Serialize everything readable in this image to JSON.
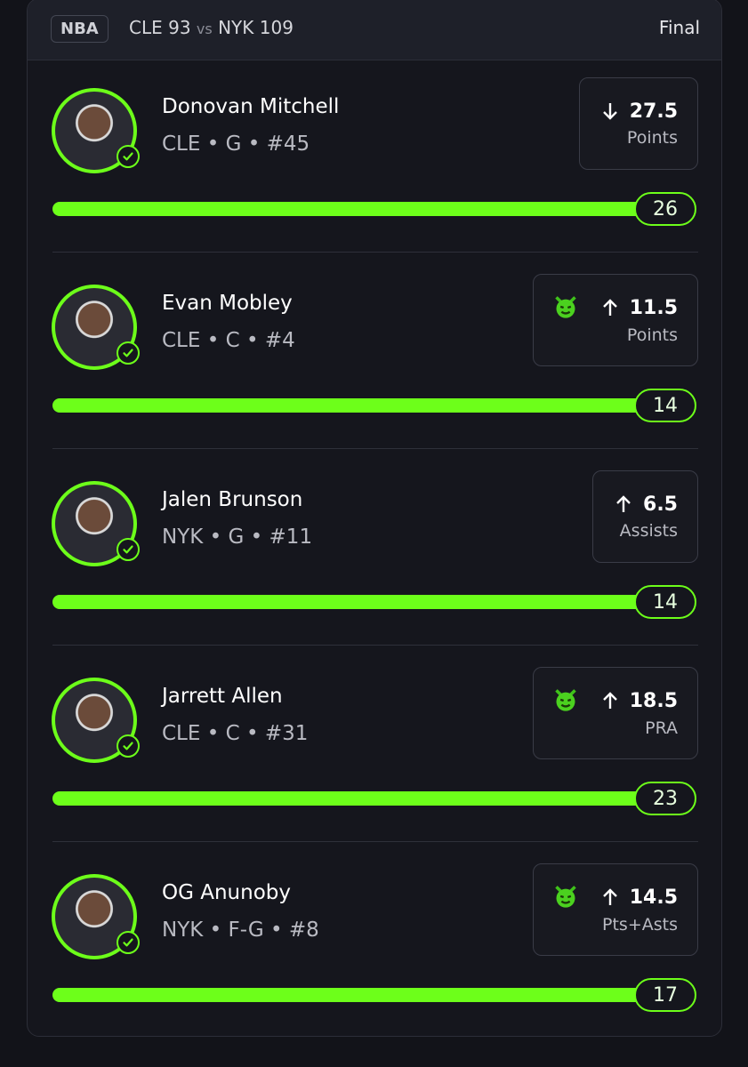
{
  "header": {
    "league": "NBA",
    "team1": "CLE",
    "score1": 93,
    "vs": "vs",
    "team2": "NYK",
    "score2": 109,
    "status": "Final"
  },
  "picks": [
    {
      "name": "Donovan Mitchell",
      "meta": "CLE • G • #45",
      "direction": "down",
      "boosted": false,
      "line": 27.5,
      "stat": "Points",
      "result": 26
    },
    {
      "name": "Evan Mobley",
      "meta": "CLE • C • #4",
      "direction": "up",
      "boosted": true,
      "line": 11.5,
      "stat": "Points",
      "result": 14
    },
    {
      "name": "Jalen Brunson",
      "meta": "NYK • G • #11",
      "direction": "up",
      "boosted": false,
      "line": 6.5,
      "stat": "Assists",
      "result": 14
    },
    {
      "name": "Jarrett Allen",
      "meta": "CLE • C • #31",
      "direction": "up",
      "boosted": true,
      "line": 18.5,
      "stat": "PRA",
      "result": 23
    },
    {
      "name": "OG Anunoby",
      "meta": "NYK • F-G • #8",
      "direction": "up",
      "boosted": true,
      "line": 14.5,
      "stat": "Pts+Asts",
      "result": 17
    }
  ]
}
